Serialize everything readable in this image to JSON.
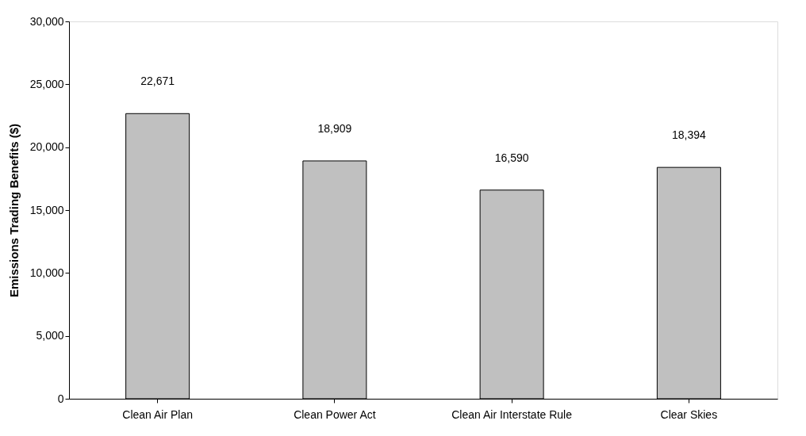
{
  "chart_data": {
    "type": "bar",
    "categories": [
      "Clean Air Plan",
      "Clean Power Act",
      "Clean Air Interstate Rule",
      "Clear Skies"
    ],
    "values": [
      22671,
      18909,
      16590,
      18394
    ],
    "color": "#c0c0c0",
    "ylabel": "Emissions Trading Benefits ($)",
    "ylim": [
      0,
      30000
    ],
    "yticks": [
      0,
      {
        "value": 5000,
        "label": "5,000"
      },
      {
        "value": 10000,
        "label": "10,000"
      },
      {
        "value": 15000,
        "label": "15,000"
      },
      {
        "value": 20000,
        "label": "20,000"
      },
      {
        "value": 25000,
        "label": "25,000"
      },
      {
        "value": 30000,
        "label": "30,000"
      }
    ],
    "grid": false,
    "value_labels": [
      "22,671",
      "18,909",
      "16,590",
      "18,394"
    ]
  }
}
